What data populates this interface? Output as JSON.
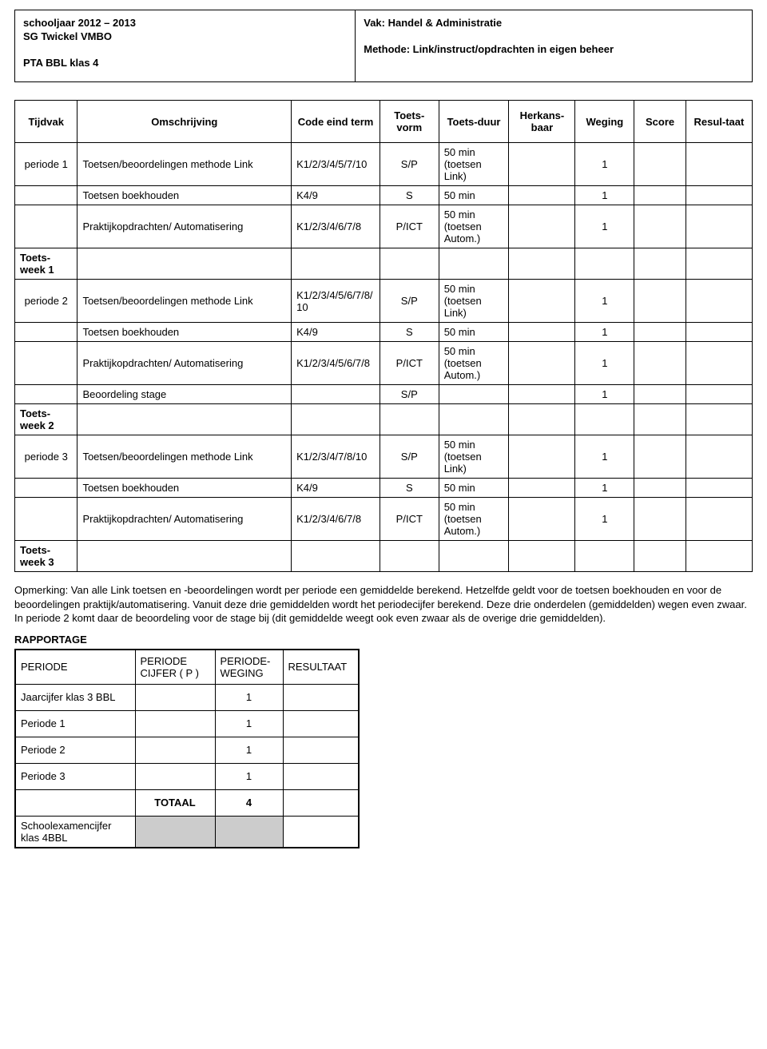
{
  "header": {
    "left": {
      "line1": "schooljaar 2012 – 2013",
      "line2": "SG Twickel VMBO",
      "line3": "PTA BBL klas 4"
    },
    "right": {
      "line1": "Vak: Handel & Administratie",
      "line2": "Methode: Link/instruct/opdrachten in eigen beheer"
    }
  },
  "main_table": {
    "headers": [
      "Tijdvak",
      "Omschrijving",
      "Code eind term",
      "Toets-vorm",
      "Toets-duur",
      "Herkans-baar",
      "Weging",
      "Score",
      "Resul-taat"
    ],
    "rows": [
      {
        "c0": "periode 1",
        "c1": "Toetsen/beoordelingen methode Link",
        "c2": "K1/2/3/4/5/7/10",
        "c3": "S/P",
        "c4": "50 min (toetsen Link)",
        "c5": "",
        "c6": "1",
        "c7": "",
        "c8": ""
      },
      {
        "c0": "",
        "c1": "Toetsen boekhouden",
        "c2": "K4/9",
        "c3": "S",
        "c4": "50 min",
        "c5": "",
        "c6": "1",
        "c7": "",
        "c8": ""
      },
      {
        "c0": "",
        "c1": "Praktijkopdrachten/ Automatisering",
        "c2": "K1/2/3/4/6/7/8",
        "c3": "P/ICT",
        "c4": "50 min (toetsen Autom.)",
        "c5": "",
        "c6": "1",
        "c7": "",
        "c8": ""
      },
      {
        "c0": "Toets-week 1",
        "tw": true
      },
      {
        "c0": "periode 2",
        "c1": "Toetsen/beoordelingen methode Link",
        "c2": "K1/2/3/4/5/6/7/8/ 10",
        "c3": "S/P",
        "c4": "50 min (toetsen Link)",
        "c5": "",
        "c6": "1",
        "c7": "",
        "c8": ""
      },
      {
        "c0": "",
        "c1": "Toetsen boekhouden",
        "c2": "K4/9",
        "c3": "S",
        "c4": "50 min",
        "c5": "",
        "c6": "1",
        "c7": "",
        "c8": ""
      },
      {
        "c0": "",
        "c1": "Praktijkopdrachten/ Automatisering",
        "c2": "K1/2/3/4/5/6/7/8",
        "c3": "P/ICT",
        "c4": "50 min (toetsen Autom.)",
        "c5": "",
        "c6": "1",
        "c7": "",
        "c8": ""
      },
      {
        "c0": "",
        "c1": "Beoordeling stage",
        "c2": "",
        "c3": "S/P",
        "c4": "",
        "c5": "",
        "c6": "1",
        "c7": "",
        "c8": ""
      },
      {
        "c0": "Toets-week 2",
        "tw": true
      },
      {
        "c0": "periode 3",
        "c1": "Toetsen/beoordelingen methode Link",
        "c2": "K1/2/3/4/7/8/10",
        "c3": "S/P",
        "c4": "50 min (toetsen Link)",
        "c5": "",
        "c6": "1",
        "c7": "",
        "c8": ""
      },
      {
        "c0": "",
        "c1": "Toetsen boekhouden",
        "c2": "K4/9",
        "c3": "S",
        "c4": "50 min",
        "c5": "",
        "c6": "1",
        "c7": "",
        "c8": ""
      },
      {
        "c0": "",
        "c1": "Praktijkopdrachten/ Automatisering",
        "c2": "K1/2/3/4/6/7/8",
        "c3": "P/ICT",
        "c4": "50 min (toetsen Autom.)",
        "c5": "",
        "c6": "1",
        "c7": "",
        "c8": ""
      },
      {
        "c0": "Toets-week 3",
        "tw": true
      }
    ]
  },
  "remark": "Opmerking: Van alle Link toetsen en -beoordelingen wordt per periode een gemiddelde berekend. Hetzelfde geldt voor de toetsen boekhouden en voor de beoordelingen praktijk/automatisering. Vanuit deze drie gemiddelden wordt het periodecijfer berekend. Deze drie onderdelen (gemiddelden) wegen even zwaar. In periode 2 komt daar de beoordeling voor de stage bij (dit gemiddelde weegt ook even zwaar als de overige drie gemiddelden).",
  "rapportage": {
    "title": "RAPPORTAGE",
    "headers": [
      "PERIODE",
      "PERIODE CIJFER ( P )",
      "PERIODE-WEGING",
      "RESULTAAT"
    ],
    "rows": [
      {
        "label": "Jaarcijfer klas 3 BBL",
        "p": "",
        "w": "1",
        "r": ""
      },
      {
        "label": "Periode 1",
        "p": "",
        "w": "1",
        "r": ""
      },
      {
        "label": "Periode 2",
        "p": "",
        "w": "1",
        "r": ""
      },
      {
        "label": "Periode 3",
        "p": "",
        "w": "1",
        "r": ""
      }
    ],
    "total_label": "TOTAAL",
    "total_value": "4",
    "footer_label": "Schoolexamencijfer klas 4BBL"
  }
}
